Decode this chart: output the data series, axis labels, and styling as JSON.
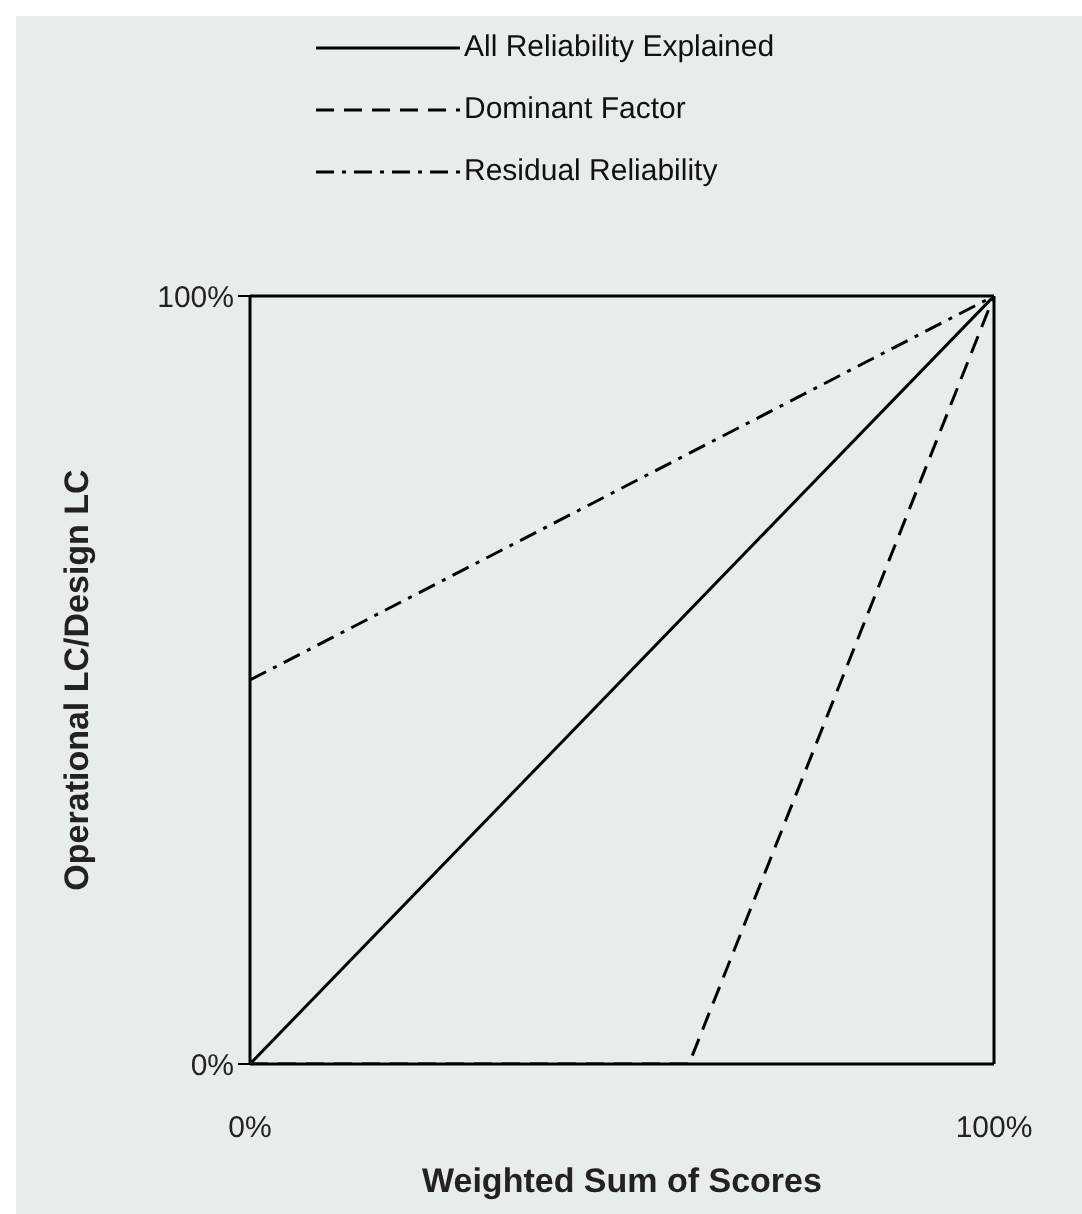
{
  "chart_data": {
    "type": "line",
    "xlabel": "Weighted Sum of Scores",
    "ylabel": "Operational LC/Design LC",
    "xlim": [
      0,
      100
    ],
    "ylim": [
      0,
      100
    ],
    "xticks": [
      {
        "value": 0,
        "label": "0%"
      },
      {
        "value": 100,
        "label": "100%"
      }
    ],
    "yticks": [
      {
        "value": 0,
        "label": "0%"
      },
      {
        "value": 100,
        "label": "100%"
      }
    ],
    "legend": "top",
    "marker": "none",
    "series": [
      {
        "name": "All Reliability Explained",
        "color": "#000000",
        "line_style": "solid",
        "x": [
          0,
          100
        ],
        "values": [
          0,
          100
        ]
      },
      {
        "name": "Dominant Factor",
        "color": "#000000",
        "line_style": "dashed",
        "x": [
          0,
          59,
          100
        ],
        "values": [
          0,
          0,
          100
        ]
      },
      {
        "name": "Residual Reliability",
        "color": "#000000",
        "line_style": "dashdot",
        "x": [
          0,
          100
        ],
        "values": [
          50,
          100
        ]
      }
    ]
  }
}
